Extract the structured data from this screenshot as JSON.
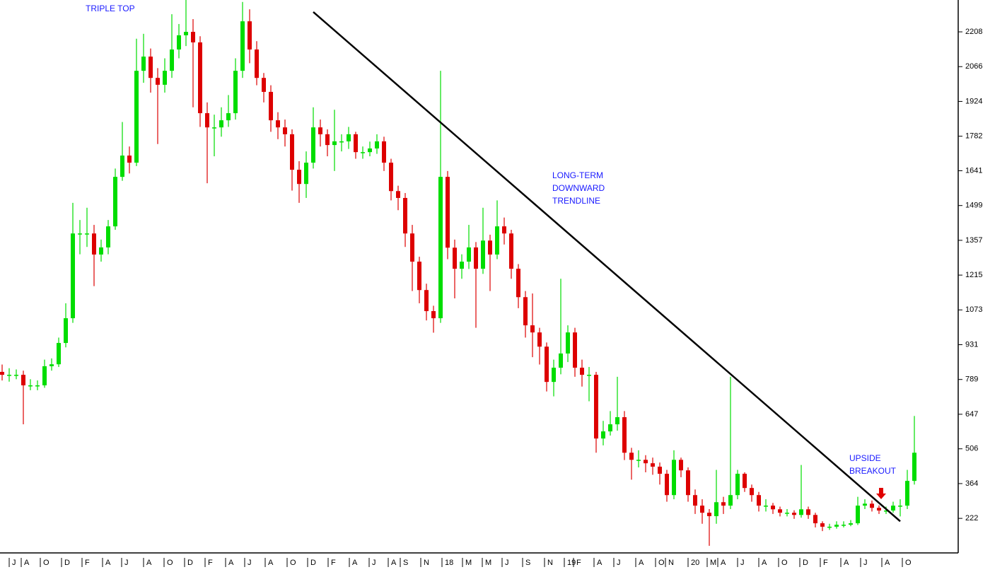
{
  "chart_data": {
    "type": "candlestick",
    "up_color": "#00dd00",
    "down_color": "#dd0000",
    "trendline_color": "#000000",
    "annotations": [
      "TRIPLE TOP",
      "LONG-TERM",
      "DOWNWARD",
      "TRENDLINE",
      "UPSIDE",
      "BREAKOUT"
    ],
    "ylim": [
      81,
      2338
    ],
    "yticks": [
      222,
      364,
      506,
      647,
      789,
      931,
      1073,
      1215,
      1357,
      1499,
      1641,
      1782,
      1924,
      2066,
      2208
    ],
    "xlim": [
      -0.3,
      135.2
    ],
    "xticks": [
      {
        "value": 1,
        "label": "J"
      },
      {
        "value": 2.7,
        "label": "A"
      },
      {
        "value": 5.4,
        "label": "O"
      },
      {
        "value": 8.4,
        "label": "D"
      },
      {
        "value": 11.3,
        "label": "F"
      },
      {
        "value": 14.2,
        "label": "A"
      },
      {
        "value": 16.9,
        "label": "J"
      },
      {
        "value": 20,
        "label": "A"
      },
      {
        "value": 22.9,
        "label": "O"
      },
      {
        "value": 25.8,
        "label": "D"
      },
      {
        "value": 28.7,
        "label": "F"
      },
      {
        "value": 31.6,
        "label": "A"
      },
      {
        "value": 34.3,
        "label": "J"
      },
      {
        "value": 37.2,
        "label": "A"
      },
      {
        "value": 40.3,
        "label": "O"
      },
      {
        "value": 43.2,
        "label": "D"
      },
      {
        "value": 46.1,
        "label": "F"
      },
      {
        "value": 49.1,
        "label": "A"
      },
      {
        "value": 51.9,
        "label": "J"
      },
      {
        "value": 54.6,
        "label": "A"
      },
      {
        "value": 56.3,
        "label": "S"
      },
      {
        "value": 59.2,
        "label": "N"
      },
      {
        "value": 62.2,
        "label": "18"
      },
      {
        "value": 65.1,
        "label": "M"
      },
      {
        "value": 67.9,
        "label": "M"
      },
      {
        "value": 70.7,
        "label": "J"
      },
      {
        "value": 73.6,
        "label": "S"
      },
      {
        "value": 76.7,
        "label": "N"
      },
      {
        "value": 79.5,
        "label": "19"
      },
      {
        "value": 80.8,
        "label": "F"
      },
      {
        "value": 83.7,
        "label": "A"
      },
      {
        "value": 86.5,
        "label": "J"
      },
      {
        "value": 89.6,
        "label": "A"
      },
      {
        "value": 92.4,
        "label": "O"
      },
      {
        "value": 93.8,
        "label": "N"
      },
      {
        "value": 97,
        "label": "20"
      },
      {
        "value": 99.7,
        "label": "M"
      },
      {
        "value": 101.2,
        "label": "A"
      },
      {
        "value": 104,
        "label": "J"
      },
      {
        "value": 107,
        "label": "A"
      },
      {
        "value": 109.8,
        "label": "O"
      },
      {
        "value": 112.8,
        "label": "D"
      },
      {
        "value": 115.7,
        "label": "F"
      },
      {
        "value": 118.6,
        "label": "A"
      },
      {
        "value": 121.4,
        "label": "J"
      },
      {
        "value": 124.4,
        "label": "A"
      },
      {
        "value": 127.3,
        "label": "O"
      }
    ],
    "open": [
      820,
      808,
      808,
      808,
      765,
      765,
      765,
      843,
      851,
      938,
      1039,
      1385,
      1385,
      1385,
      1299,
      1328,
      1414,
      1616,
      1703,
      1674,
      2049,
      2107,
      2020,
      1992,
      2049,
      2136,
      2194,
      2208,
      2165,
      1876,
      1818,
      1818,
      1847,
      1876,
      2049,
      2251,
      2136,
      2020,
      1963,
      1847,
      1818,
      1790,
      1645,
      1587,
      1674,
      1818,
      1790,
      1746,
      1761,
      1761,
      1790,
      1717,
      1717,
      1732,
      1761,
      1674,
      1558,
      1530,
      1385,
      1270,
      1154,
      1068,
      1039,
      1616,
      1327,
      1241,
      1270,
      1328,
      1241,
      1356,
      1299,
      1414,
      1385,
      1241,
      1125,
      1010,
      981,
      923,
      779,
      837,
      895,
      981,
      837,
      808,
      808,
      548,
      577,
      606,
      635,
      490,
      461,
      461,
      447,
      433,
      404,
      317,
      461,
      418,
      317,
      274,
      245,
      231,
      288,
      274,
      317,
      404,
      346,
      317,
      274,
      274,
      259,
      245,
      245,
      236,
      259,
      236,
      202,
      188,
      188,
      196,
      196,
      202,
      274,
      282,
      265,
      254,
      254,
      274,
      274,
      375
    ],
    "high": [
      850,
      835,
      830,
      825,
      790,
      785,
      870,
      875,
      960,
      1100,
      1510,
      1440,
      1490,
      1420,
      1360,
      1440,
      1650,
      1840,
      1740,
      2180,
      2200,
      2140,
      2060,
      2100,
      2280,
      2240,
      2338,
      2260,
      2190,
      1920,
      1870,
      1900,
      1950,
      2100,
      2330,
      2300,
      2170,
      2040,
      1990,
      1880,
      1850,
      1810,
      1680,
      1720,
      1900,
      1850,
      1810,
      1890,
      1790,
      1820,
      1800,
      1740,
      1760,
      1790,
      1780,
      1690,
      1580,
      1550,
      1420,
      1290,
      1180,
      1090,
      2049,
      1640,
      1360,
      1300,
      1420,
      1350,
      1490,
      1380,
      1520,
      1450,
      1400,
      1260,
      1150,
      1140,
      1000,
      940,
      870,
      1200,
      1010,
      1000,
      870,
      840,
      820,
      620,
      660,
      800,
      660,
      510,
      500,
      480,
      470,
      450,
      420,
      500,
      470,
      430,
      340,
      300,
      260,
      420,
      310,
      800,
      420,
      410,
      360,
      330,
      300,
      285,
      270,
      260,
      255,
      440,
      270,
      245,
      210,
      200,
      210,
      210,
      215,
      310,
      300,
      295,
      275,
      270,
      290,
      300,
      420,
      640
    ],
    "low": [
      785,
      780,
      790,
      606,
      745,
      745,
      755,
      825,
      840,
      920,
      1020,
      1300,
      1330,
      1170,
      1270,
      1300,
      1400,
      1600,
      1630,
      1660,
      2000,
      1960,
      1750,
      1960,
      2020,
      2100,
      2150,
      1900,
      1820,
      1590,
      1700,
      1780,
      1820,
      1850,
      2020,
      2080,
      1990,
      1920,
      1800,
      1770,
      1740,
      1560,
      1510,
      1530,
      1650,
      1740,
      1700,
      1640,
      1720,
      1730,
      1690,
      1690,
      1700,
      1710,
      1640,
      1520,
      1480,
      1330,
      1150,
      1100,
      1030,
      980,
      1020,
      1280,
      1120,
      1200,
      1240,
      1000,
      1220,
      1150,
      1280,
      1340,
      1200,
      1080,
      960,
      880,
      850,
      740,
      720,
      810,
      860,
      800,
      760,
      700,
      490,
      520,
      560,
      580,
      460,
      380,
      430,
      410,
      400,
      360,
      290,
      300,
      390,
      290,
      240,
      200,
      110,
      200,
      240,
      260,
      300,
      330,
      290,
      250,
      250,
      240,
      230,
      230,
      220,
      225,
      220,
      185,
      170,
      175,
      180,
      185,
      190,
      195,
      260,
      250,
      240,
      240,
      245,
      230,
      260,
      360
    ],
    "close": [
      808,
      808,
      808,
      765,
      765,
      765,
      843,
      851,
      938,
      1039,
      1385,
      1385,
      1385,
      1299,
      1328,
      1414,
      1616,
      1703,
      1674,
      2049,
      2107,
      2020,
      1992,
      2049,
      2136,
      2194,
      2208,
      2165,
      1876,
      1818,
      1818,
      1847,
      1876,
      2049,
      2251,
      2136,
      2020,
      1963,
      1847,
      1818,
      1790,
      1645,
      1587,
      1674,
      1818,
      1790,
      1746,
      1761,
      1761,
      1790,
      1717,
      1717,
      1732,
      1761,
      1674,
      1558,
      1530,
      1385,
      1270,
      1154,
      1068,
      1039,
      1616,
      1327,
      1241,
      1270,
      1328,
      1241,
      1356,
      1299,
      1414,
      1385,
      1241,
      1125,
      1010,
      981,
      923,
      779,
      837,
      895,
      981,
      837,
      808,
      808,
      548,
      577,
      606,
      635,
      490,
      461,
      461,
      447,
      433,
      404,
      317,
      461,
      418,
      317,
      274,
      245,
      231,
      288,
      274,
      317,
      404,
      346,
      317,
      274,
      274,
      259,
      245,
      245,
      236,
      259,
      236,
      202,
      188,
      188,
      196,
      196,
      202,
      274,
      282,
      265,
      254,
      254,
      274,
      274,
      375,
      490
    ],
    "trendline": {
      "from": [
        44,
        2289
      ],
      "to": [
        127,
        210
      ]
    }
  }
}
